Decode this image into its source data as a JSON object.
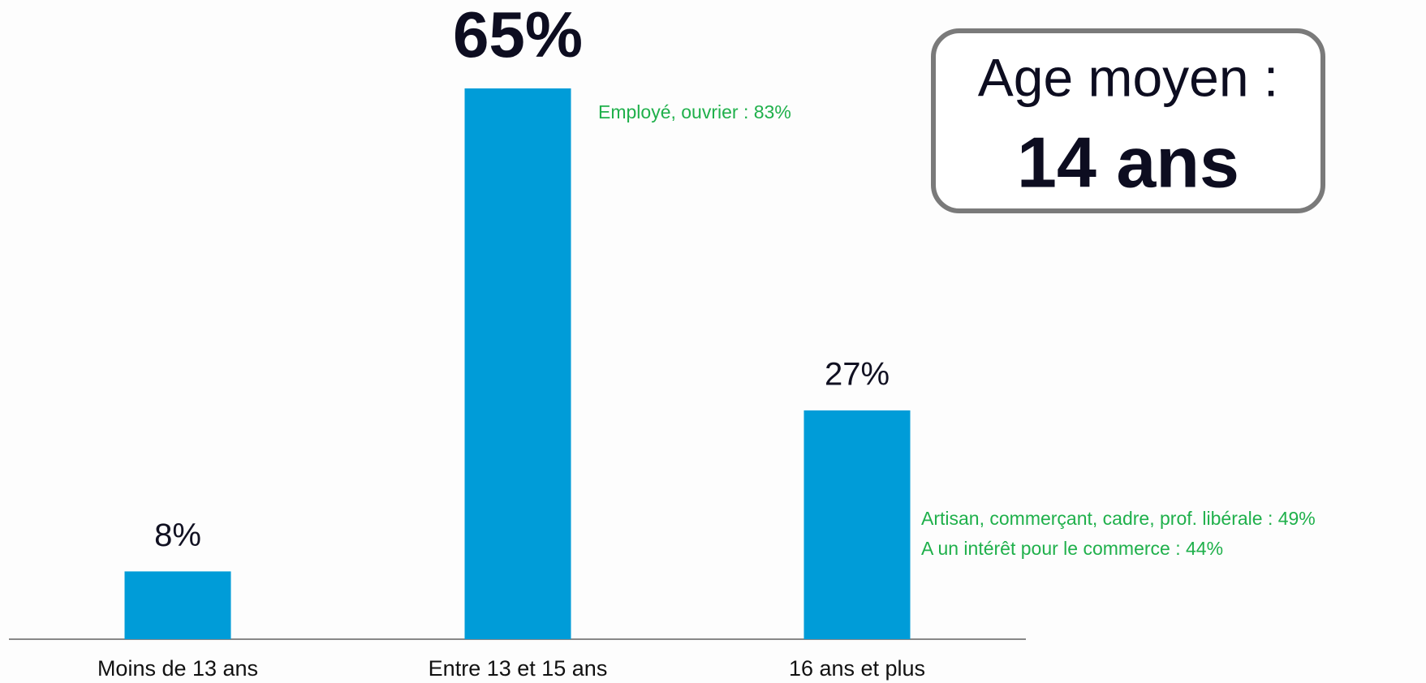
{
  "chart_data": {
    "type": "bar",
    "categories": [
      "Moins de 13 ans",
      "Entre 13 et 15 ans",
      "16 ans et plus"
    ],
    "values": [
      8,
      65,
      27
    ],
    "value_labels": [
      "8%",
      "65%",
      "27%"
    ],
    "color": "#009cd8",
    "annotations": [
      "Employé, ouvrier : 83%",
      "Artisan, commerçant, cadre, prof. libérale : 49%",
      "A un intérêt pour le commerce : 44%"
    ],
    "callout": {
      "label": "Age moyen :",
      "value": "14 ans"
    }
  }
}
